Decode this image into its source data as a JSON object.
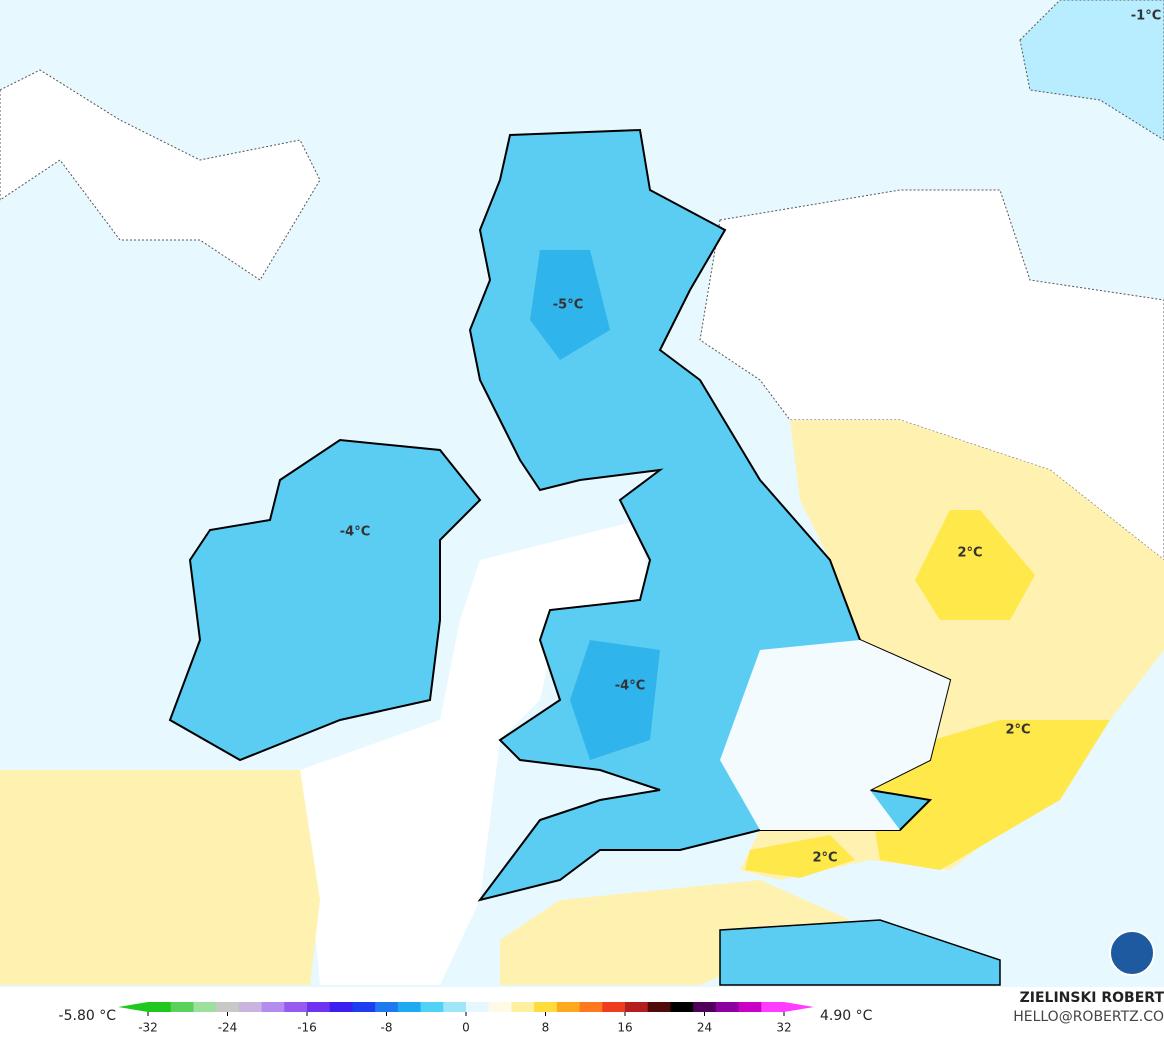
{
  "map_labels": [
    "-1°C",
    "-5°C",
    "-4°C",
    "-4°C",
    "2°C",
    "2°C",
    "2°C"
  ],
  "colorbar": {
    "min_label": "-5.80 °C",
    "max_label": "4.90 °C",
    "ticks": [
      -32,
      -24,
      -16,
      -8,
      0,
      8,
      16,
      24,
      32
    ],
    "colors": [
      "#1ec81e",
      "#5ad25a",
      "#9be09b",
      "#c8c8c8",
      "#c8b4dc",
      "#b48cf0",
      "#965af0",
      "#6e32f0",
      "#3c1ef0",
      "#1e3cf0",
      "#1e78f0",
      "#1eaaf0",
      "#50d2f5",
      "#a0e6fa",
      "#e6f8ff",
      "#fffae6",
      "#fff0a0",
      "#ffdc3c",
      "#ffaa1e",
      "#ff781e",
      "#f03c1e",
      "#b41e1e",
      "#500a0a",
      "#000000",
      "#50005a",
      "#8c00a0",
      "#c800c8",
      "#ff3cff"
    ]
  },
  "credits": {
    "name": "ZIELINSKI ROBERT",
    "email": "HELLO@ROBERTZ.CO"
  }
}
